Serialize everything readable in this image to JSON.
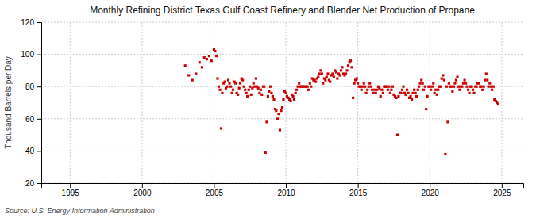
{
  "chart_data": {
    "type": "scatter",
    "title": "Monthly Refining District Texas Gulf Coast Refinery and Blender Net Production of Propane",
    "ylabel": "Thousand Barrels per Day",
    "annotations": [
      "Source: U.S. Energy Information Administration"
    ],
    "color": "#cc0000",
    "marker": "square",
    "grid": true,
    "xlim": [
      1993.0,
      2026.5
    ],
    "xticks": [
      1995,
      2000,
      2005,
      2010,
      2015,
      2020,
      2025
    ],
    "ylim": [
      20,
      120
    ],
    "yticks": [
      20,
      40,
      60,
      80,
      100,
      120
    ],
    "x": [
      2003.0,
      2003.25,
      2003.5,
      2003.75,
      2004.0,
      2004.17,
      2004.33,
      2004.5,
      2004.67,
      2004.83,
      2005.0,
      2005.08,
      2005.17,
      2005.25,
      2005.33,
      2005.42,
      2005.5,
      2005.58,
      2005.67,
      2005.75,
      2005.83,
      2005.92,
      2006.0,
      2006.08,
      2006.17,
      2006.25,
      2006.33,
      2006.42,
      2006.5,
      2006.58,
      2006.67,
      2006.75,
      2006.83,
      2006.92,
      2007.0,
      2007.08,
      2007.17,
      2007.25,
      2007.33,
      2007.42,
      2007.5,
      2007.58,
      2007.67,
      2007.75,
      2007.83,
      2007.92,
      2008.0,
      2008.08,
      2008.17,
      2008.25,
      2008.33,
      2008.42,
      2008.5,
      2008.58,
      2008.67,
      2008.75,
      2008.83,
      2008.92,
      2009.0,
      2009.08,
      2009.17,
      2009.25,
      2009.33,
      2009.42,
      2009.5,
      2009.58,
      2009.67,
      2009.75,
      2009.83,
      2009.92,
      2010.0,
      2010.08,
      2010.17,
      2010.25,
      2010.33,
      2010.42,
      2010.5,
      2010.58,
      2010.67,
      2010.75,
      2010.83,
      2010.92,
      2011.0,
      2011.08,
      2011.17,
      2011.25,
      2011.33,
      2011.42,
      2011.5,
      2011.58,
      2011.67,
      2011.75,
      2011.83,
      2011.92,
      2012.0,
      2012.08,
      2012.17,
      2012.25,
      2012.33,
      2012.42,
      2012.5,
      2012.58,
      2012.67,
      2012.75,
      2012.83,
      2012.92,
      2013.0,
      2013.08,
      2013.17,
      2013.25,
      2013.33,
      2013.42,
      2013.5,
      2013.58,
      2013.67,
      2013.75,
      2013.83,
      2013.92,
      2014.0,
      2014.08,
      2014.17,
      2014.25,
      2014.33,
      2014.42,
      2014.5,
      2014.58,
      2014.67,
      2014.75,
      2014.83,
      2014.92,
      2015.0,
      2015.08,
      2015.17,
      2015.25,
      2015.33,
      2015.42,
      2015.5,
      2015.58,
      2015.67,
      2015.75,
      2015.83,
      2015.92,
      2016.0,
      2016.08,
      2016.17,
      2016.25,
      2016.33,
      2016.42,
      2016.5,
      2016.58,
      2016.67,
      2016.75,
      2016.83,
      2016.92,
      2017.0,
      2017.08,
      2017.17,
      2017.25,
      2017.33,
      2017.42,
      2017.5,
      2017.58,
      2017.67,
      2017.75,
      2017.83,
      2017.92,
      2018.0,
      2018.08,
      2018.17,
      2018.25,
      2018.33,
      2018.42,
      2018.5,
      2018.58,
      2018.67,
      2018.75,
      2018.83,
      2018.92,
      2019.0,
      2019.08,
      2019.17,
      2019.25,
      2019.33,
      2019.42,
      2019.5,
      2019.58,
      2019.67,
      2019.75,
      2019.83,
      2019.92,
      2020.0,
      2020.08,
      2020.17,
      2020.25,
      2020.33,
      2020.42,
      2020.5,
      2020.58,
      2020.67,
      2020.75,
      2020.83,
      2020.92,
      2021.0,
      2021.08,
      2021.17,
      2021.25,
      2021.33,
      2021.42,
      2021.5,
      2021.58,
      2021.67,
      2021.75,
      2021.83,
      2021.92,
      2022.0,
      2022.08,
      2022.17,
      2022.25,
      2022.33,
      2022.42,
      2022.5,
      2022.58,
      2022.67,
      2022.75,
      2022.83,
      2022.92,
      2023.0,
      2023.08,
      2023.17,
      2023.25,
      2023.33,
      2023.42,
      2023.5,
      2023.58,
      2023.67,
      2023.75,
      2023.83,
      2023.92,
      2024.0,
      2024.08,
      2024.17,
      2024.25,
      2024.33,
      2024.42,
      2024.5,
      2024.58,
      2024.67,
      2024.75
    ],
    "values": [
      93,
      87,
      84,
      88,
      95,
      92,
      98,
      97,
      99,
      96,
      103,
      102,
      99,
      85,
      80,
      78,
      54,
      76,
      82,
      83,
      79,
      80,
      84,
      82,
      80,
      76,
      78,
      83,
      82,
      76,
      75,
      79,
      82,
      85,
      84,
      80,
      78,
      76,
      74,
      78,
      80,
      75,
      79,
      82,
      80,
      85,
      80,
      79,
      76,
      78,
      75,
      80,
      80,
      39,
      58,
      74,
      77,
      80,
      76,
      74,
      72,
      66,
      65,
      60,
      63,
      53,
      65,
      67,
      72,
      77,
      76,
      74,
      73,
      72,
      71,
      75,
      74,
      72,
      76,
      78,
      80,
      82,
      80,
      80,
      80,
      80,
      80,
      80,
      80,
      78,
      82,
      80,
      85,
      84,
      84,
      83,
      85,
      86,
      88,
      90,
      88,
      82,
      85,
      84,
      86,
      88,
      84,
      83,
      87,
      88,
      86,
      90,
      89,
      85,
      88,
      87,
      90,
      92,
      88,
      87,
      88,
      90,
      93,
      95,
      96,
      92,
      73,
      82,
      84,
      85,
      82,
      80,
      80,
      78,
      80,
      82,
      80,
      76,
      78,
      80,
      82,
      80,
      78,
      76,
      78,
      76,
      78,
      80,
      79,
      74,
      78,
      76,
      80,
      80,
      80,
      78,
      80,
      76,
      78,
      80,
      75,
      74,
      73,
      50,
      74,
      76,
      76,
      78,
      80,
      76,
      75,
      78,
      76,
      73,
      74,
      72,
      76,
      78,
      76,
      74,
      78,
      80,
      82,
      84,
      82,
      78,
      80,
      66,
      74,
      80,
      80,
      78,
      80,
      82,
      76,
      78,
      75,
      78,
      80,
      80,
      85,
      87,
      84,
      38,
      80,
      58,
      82,
      80,
      80,
      77,
      80,
      82,
      84,
      86,
      80,
      78,
      80,
      80,
      82,
      84,
      82,
      80,
      78,
      76,
      80,
      80,
      78,
      76,
      80,
      80,
      82,
      82,
      80,
      80,
      78,
      80,
      84,
      88,
      84,
      80,
      82,
      80,
      78,
      80,
      72,
      71,
      70,
      69
    ]
  }
}
